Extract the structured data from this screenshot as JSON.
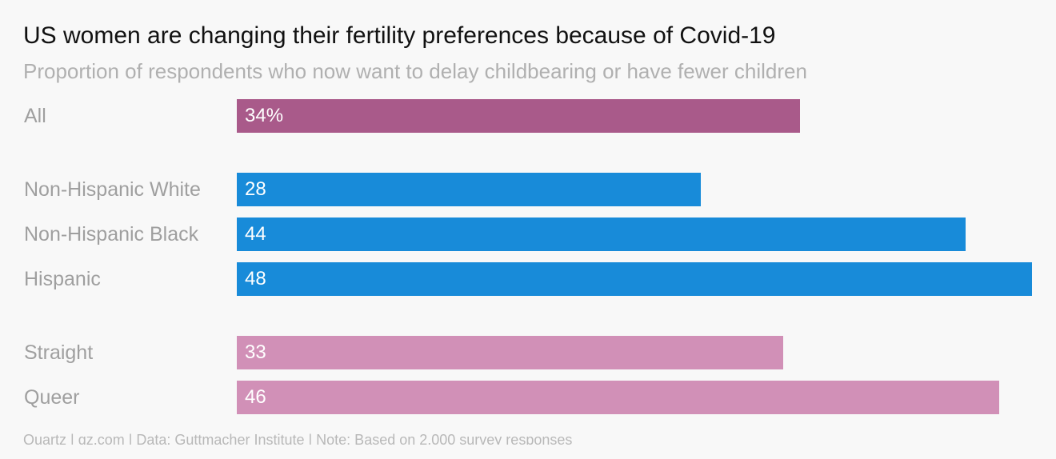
{
  "title": "US women are changing their fertility preferences because of Covid-19",
  "subtitle": "Proportion of respondents who now want to delay childbearing or have fewer children",
  "footer": "Quartz | qz.com | Data: Guttmacher Institute | Note: Based on 2,000 survey responses",
  "colors": {
    "all": "#a95a8a",
    "race": "#188bd9",
    "orientation": "#d190b7",
    "background": "#f8f8f8"
  },
  "chart_data": {
    "type": "bar",
    "orientation": "horizontal",
    "title": "US women are changing their fertility preferences because of Covid-19",
    "subtitle": "Proportion of respondents who now want to delay childbearing or have fewer children",
    "unit": "%",
    "xlim": [
      0,
      48
    ],
    "grid": false,
    "legend": "none",
    "rows": [
      {
        "label": "All",
        "value": 34,
        "display": "34%",
        "group": "all"
      },
      {
        "label": "Non-Hispanic White",
        "value": 28,
        "display": "28",
        "group": "race"
      },
      {
        "label": "Non-Hispanic Black",
        "value": 44,
        "display": "44",
        "group": "race"
      },
      {
        "label": "Hispanic",
        "value": 48,
        "display": "48",
        "group": "race"
      },
      {
        "label": "Straight",
        "value": 33,
        "display": "33",
        "group": "orientation"
      },
      {
        "label": "Queer",
        "value": 46,
        "display": "46",
        "group": "orientation"
      }
    ]
  }
}
